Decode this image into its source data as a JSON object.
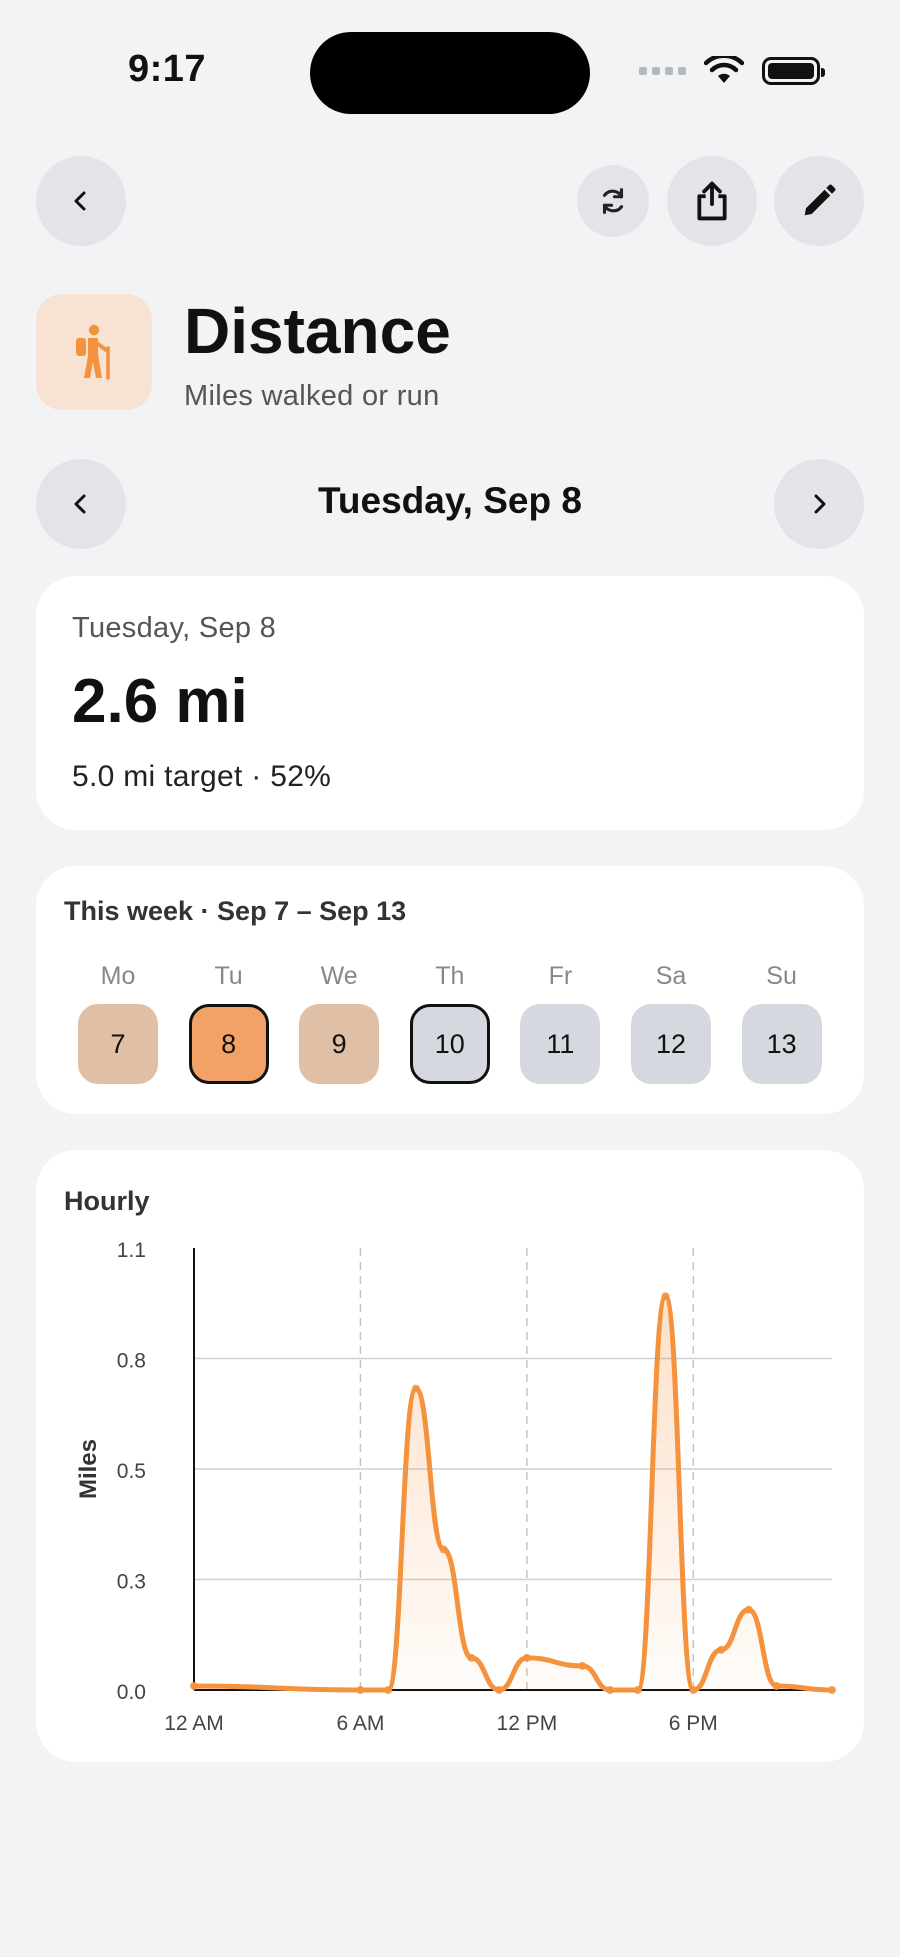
{
  "status_bar": {
    "time": "9:17"
  },
  "toolbar": {
    "back": "chevron-left-icon",
    "sync": "sync-icon",
    "share": "share-icon",
    "edit": "pencil-icon"
  },
  "header": {
    "title": "Distance",
    "subtitle": "Miles walked or run",
    "icon": "hiker-icon",
    "accent": "#f5923e"
  },
  "date_nav": {
    "label": "Tuesday, Sep 8"
  },
  "summary": {
    "date": "Tuesday, Sep 8",
    "value": "2.6 mi",
    "target": "5.0 mi target · 52%"
  },
  "week": {
    "heading": "This week · Sep 7 – Sep 13",
    "days": [
      {
        "label": "Mo",
        "num": "7",
        "state": "done"
      },
      {
        "label": "Tu",
        "num": "8",
        "state": "selected"
      },
      {
        "label": "We",
        "num": "9",
        "state": "done"
      },
      {
        "label": "Th",
        "num": "10",
        "state": "today"
      },
      {
        "label": "Fr",
        "num": "11",
        "state": "future"
      },
      {
        "label": "Sa",
        "num": "12",
        "state": "future"
      },
      {
        "label": "Su",
        "num": "13",
        "state": "future"
      }
    ]
  },
  "hourly": {
    "heading": "Hourly",
    "chart_data": {
      "type": "area",
      "title": "",
      "ylabel": "Miles",
      "xlabel": "",
      "ylim": [
        0,
        1.1
      ],
      "xlim": [
        0,
        23
      ],
      "yticks": [
        {
          "v": 0.0,
          "label": "0.0"
        },
        {
          "v": 0.275,
          "label": "0.3"
        },
        {
          "v": 0.55,
          "label": "0.5"
        },
        {
          "v": 0.825,
          "label": "0.8"
        },
        {
          "v": 1.1,
          "label": "1.1"
        }
      ],
      "xticks": [
        {
          "v": 0,
          "label": "12 AM"
        },
        {
          "v": 6,
          "label": "6 AM"
        },
        {
          "v": 12,
          "label": "12 PM"
        },
        {
          "v": 18,
          "label": "6 PM"
        }
      ],
      "series": [
        {
          "color": "#f5923e",
          "points": [
            [
              0,
              0.01
            ],
            [
              6,
              0.0
            ],
            [
              7,
              0.0
            ],
            [
              8,
              0.75
            ],
            [
              9,
              0.35
            ],
            [
              10,
              0.08
            ],
            [
              11,
              0.0
            ],
            [
              12,
              0.08
            ],
            [
              14,
              0.06
            ],
            [
              15,
              0.0
            ],
            [
              16,
              0.0
            ],
            [
              17,
              0.98
            ],
            [
              18,
              0.0
            ],
            [
              19,
              0.1
            ],
            [
              20,
              0.2
            ],
            [
              21,
              0.01
            ],
            [
              23,
              0.0
            ]
          ]
        }
      ]
    }
  }
}
